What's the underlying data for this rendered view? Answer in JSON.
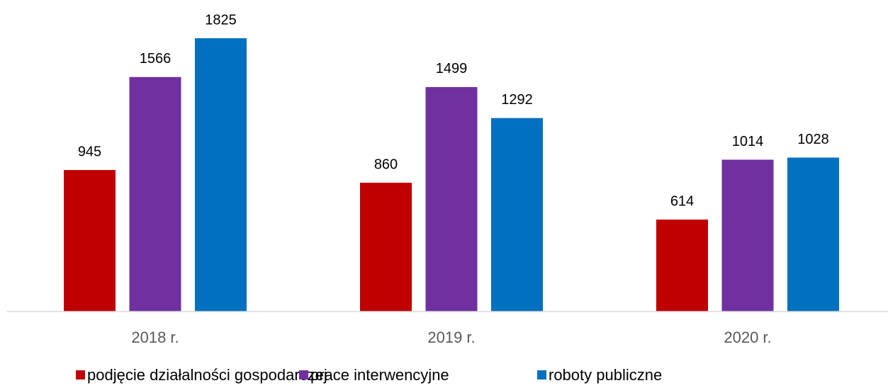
{
  "chart_data": {
    "type": "bar",
    "categories": [
      "2018 r.",
      "2019 r.",
      "2020 r."
    ],
    "series": [
      {
        "name": "podjęcie działalności gospodarczej",
        "color": "#c00000",
        "values": [
          945,
          860,
          614
        ]
      },
      {
        "name": "prace interwencyjne",
        "color": "#7030a0",
        "values": [
          1566,
          1499,
          1014
        ]
      },
      {
        "name": "roboty publiczne",
        "color": "#0070c0",
        "values": [
          1825,
          1292,
          1028
        ]
      }
    ],
    "ylim": [
      0,
      2000
    ],
    "legend": "bottom"
  }
}
